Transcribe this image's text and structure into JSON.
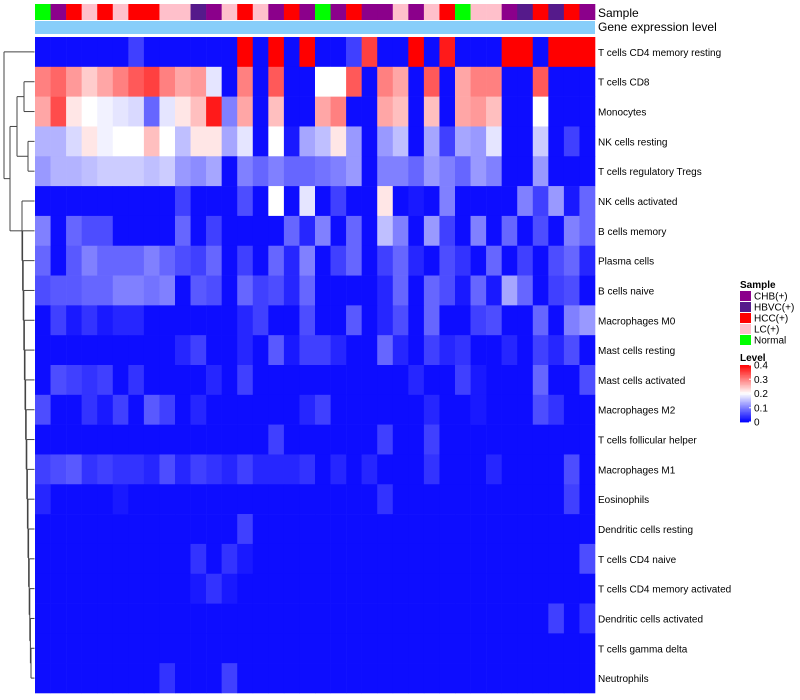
{
  "chart_data": {
    "type": "heatmap",
    "title": "",
    "colormap": {
      "low": "#0000ff",
      "mid": "#ffffff",
      "high": "#ff0000",
      "min": 0,
      "mid_value": 0.2,
      "max": 0.4
    },
    "annotation_labels": {
      "sample": "Sample",
      "level": "Gene expression level"
    },
    "level_color": "#87cefa",
    "sample_categories": [
      {
        "name": "CHB(+)",
        "color": "#8b008b"
      },
      {
        "name": "HBVC(+)",
        "color": "#551a8b"
      },
      {
        "name": "HCC(+)",
        "color": "#ff0000"
      },
      {
        "name": "LC(+)",
        "color": "#ffc0cb"
      },
      {
        "name": "Normal",
        "color": "#00ff00"
      }
    ],
    "samples": [
      "Normal",
      "CHB(+)",
      "HCC(+)",
      "LC(+)",
      "HCC(+)",
      "LC(+)",
      "HCC(+)",
      "HCC(+)",
      "LC(+)",
      "LC(+)",
      "HBVC(+)",
      "CHB(+)",
      "LC(+)",
      "HCC(+)",
      "LC(+)",
      "CHB(+)",
      "HCC(+)",
      "CHB(+)",
      "Normal",
      "CHB(+)",
      "HCC(+)",
      "CHB(+)",
      "CHB(+)",
      "LC(+)",
      "CHB(+)",
      "LC(+)",
      "HCC(+)",
      "Normal",
      "LC(+)",
      "LC(+)",
      "CHB(+)",
      "HBVC(+)",
      "HCC(+)",
      "HBVC(+)",
      "HCC(+)",
      "CHB(+)"
    ],
    "rows": [
      "T cells CD4 memory resting",
      "T cells CD8",
      "Monocytes",
      "NK cells resting",
      "T cells regulatory  Tregs",
      "NK cells activated",
      "B cells memory",
      "Plasma cells",
      "B cells naive",
      "Macrophages M0",
      "Mast cells resting",
      "Mast cells activated",
      "Macrophages M2",
      "T cells follicular helper",
      "Macrophages M1",
      "Eosinophils",
      "Dendritic cells resting",
      "T cells CD4 naive",
      "T cells CD4 memory activated",
      "Dendritic cells activated",
      "T cells gamma delta",
      "Neutrophils"
    ],
    "values": [
      [
        0.01,
        0.01,
        0.01,
        0.01,
        0.01,
        0.01,
        0.05,
        0.01,
        0.01,
        0.01,
        0.01,
        0.01,
        0.01,
        0.4,
        0.01,
        0.4,
        0.01,
        0.4,
        0.01,
        0.01,
        0.05,
        0.35,
        0.01,
        0.01,
        0.4,
        0.01,
        0.38,
        0.01,
        0.01,
        0.01,
        0.4,
        0.4,
        0.01,
        0.4,
        0.4,
        0.4
      ],
      [
        0.3,
        0.32,
        0.28,
        0.24,
        0.27,
        0.3,
        0.33,
        0.35,
        0.3,
        0.27,
        0.28,
        0.18,
        0.01,
        0.3,
        0.01,
        0.33,
        0.01,
        0.01,
        0.2,
        0.2,
        0.33,
        0.01,
        0.3,
        0.27,
        0.01,
        0.33,
        0.01,
        0.27,
        0.3,
        0.3,
        0.01,
        0.01,
        0.33,
        0.01,
        0.01,
        0.01
      ],
      [
        0.27,
        0.34,
        0.22,
        0.2,
        0.19,
        0.18,
        0.17,
        0.08,
        0.18,
        0.22,
        0.25,
        0.38,
        0.1,
        0.27,
        0.01,
        0.25,
        0.01,
        0.01,
        0.27,
        0.3,
        0.01,
        0.01,
        0.27,
        0.25,
        0.01,
        0.25,
        0.01,
        0.27,
        0.28,
        0.25,
        0.01,
        0.01,
        0.2,
        0.01,
        0.01,
        0.01
      ],
      [
        0.14,
        0.14,
        0.17,
        0.22,
        0.19,
        0.2,
        0.2,
        0.25,
        0.2,
        0.15,
        0.22,
        0.22,
        0.13,
        0.18,
        0.01,
        0.2,
        0.02,
        0.13,
        0.15,
        0.22,
        0.12,
        0.01,
        0.12,
        0.15,
        0.01,
        0.13,
        0.05,
        0.13,
        0.12,
        0.18,
        0.01,
        0.01,
        0.16,
        0.01,
        0.05,
        0.01
      ],
      [
        0.12,
        0.14,
        0.14,
        0.15,
        0.16,
        0.16,
        0.16,
        0.15,
        0.16,
        0.12,
        0.11,
        0.13,
        0.01,
        0.1,
        0.08,
        0.1,
        0.08,
        0.08,
        0.09,
        0.1,
        0.12,
        0.01,
        0.1,
        0.1,
        0.08,
        0.12,
        0.1,
        0.08,
        0.12,
        0.1,
        0.01,
        0.01,
        0.12,
        0.01,
        0.01,
        0.01
      ],
      [
        0.01,
        0.01,
        0.01,
        0.01,
        0.01,
        0.01,
        0.01,
        0.01,
        0.01,
        0.05,
        0.01,
        0.01,
        0.01,
        0.06,
        0.01,
        0.2,
        0.01,
        0.18,
        0.01,
        0.05,
        0.01,
        0.01,
        0.22,
        0.01,
        0.02,
        0.01,
        0.1,
        0.01,
        0.01,
        0.01,
        0.01,
        0.1,
        0.05,
        0.12,
        0.02,
        0.08
      ],
      [
        0.1,
        0.01,
        0.08,
        0.06,
        0.06,
        0.01,
        0.01,
        0.01,
        0.01,
        0.08,
        0.01,
        0.05,
        0.01,
        0.01,
        0.01,
        0.01,
        0.08,
        0.03,
        0.1,
        0.01,
        0.08,
        0.01,
        0.15,
        0.1,
        0.01,
        0.12,
        0.05,
        0.01,
        0.1,
        0.01,
        0.08,
        0.01,
        0.06,
        0.01,
        0.1,
        0.08
      ],
      [
        0.08,
        0.01,
        0.07,
        0.1,
        0.08,
        0.08,
        0.08,
        0.1,
        0.08,
        0.06,
        0.05,
        0.08,
        0.01,
        0.05,
        0.01,
        0.08,
        0.03,
        0.1,
        0.01,
        0.05,
        0.08,
        0.01,
        0.05,
        0.08,
        0.03,
        0.01,
        0.06,
        0.04,
        0.01,
        0.08,
        0.01,
        0.05,
        0.01,
        0.06,
        0.08,
        0.03
      ],
      [
        0.06,
        0.07,
        0.07,
        0.08,
        0.08,
        0.1,
        0.1,
        0.09,
        0.1,
        0.01,
        0.07,
        0.06,
        0.01,
        0.08,
        0.05,
        0.06,
        0.03,
        0.08,
        0.01,
        0.01,
        0.01,
        0.01,
        0.03,
        0.08,
        0.01,
        0.08,
        0.06,
        0.02,
        0.08,
        0.02,
        0.13,
        0.08,
        0.01,
        0.05,
        0.06,
        0.01
      ],
      [
        0.01,
        0.05,
        0.02,
        0.04,
        0.02,
        0.03,
        0.03,
        0.01,
        0.01,
        0.01,
        0.01,
        0.01,
        0.01,
        0.03,
        0.05,
        0.01,
        0.01,
        0.06,
        0.01,
        0.01,
        0.07,
        0.01,
        0.03,
        0.06,
        0.01,
        0.08,
        0.01,
        0.01,
        0.05,
        0.06,
        0.01,
        0.01,
        0.08,
        0.01,
        0.1,
        0.12
      ],
      [
        0.01,
        0.01,
        0.01,
        0.01,
        0.01,
        0.01,
        0.01,
        0.01,
        0.01,
        0.03,
        0.05,
        0.01,
        0.01,
        0.03,
        0.01,
        0.07,
        0.02,
        0.05,
        0.05,
        0.03,
        0.01,
        0.01,
        0.08,
        0.03,
        0.01,
        0.05,
        0.03,
        0.04,
        0.01,
        0.01,
        0.03,
        0.01,
        0.05,
        0.03,
        0.06,
        0.01
      ],
      [
        0.01,
        0.06,
        0.05,
        0.04,
        0.05,
        0.01,
        0.04,
        0.01,
        0.01,
        0.01,
        0.01,
        0.03,
        0.01,
        0.05,
        0.01,
        0.01,
        0.01,
        0.01,
        0.01,
        0.01,
        0.01,
        0.01,
        0.01,
        0.01,
        0.03,
        0.01,
        0.01,
        0.05,
        0.02,
        0.01,
        0.01,
        0.01,
        0.08,
        0.01,
        0.01,
        0.06
      ],
      [
        0.06,
        0.01,
        0.01,
        0.04,
        0.02,
        0.05,
        0.01,
        0.07,
        0.05,
        0.01,
        0.03,
        0.01,
        0.01,
        0.01,
        0.01,
        0.01,
        0.01,
        0.03,
        0.05,
        0.01,
        0.01,
        0.01,
        0.01,
        0.01,
        0.01,
        0.03,
        0.01,
        0.01,
        0.02,
        0.01,
        0.01,
        0.01,
        0.06,
        0.04,
        0.01,
        0.01
      ],
      [
        0.01,
        0.01,
        0.01,
        0.01,
        0.01,
        0.01,
        0.01,
        0.01,
        0.01,
        0.01,
        0.01,
        0.01,
        0.01,
        0.01,
        0.01,
        0.05,
        0.01,
        0.01,
        0.01,
        0.01,
        0.01,
        0.01,
        0.05,
        0.01,
        0.01,
        0.05,
        0.01,
        0.01,
        0.01,
        0.01,
        0.01,
        0.01,
        0.01,
        0.01,
        0.01,
        0.01
      ],
      [
        0.05,
        0.06,
        0.07,
        0.04,
        0.05,
        0.04,
        0.04,
        0.03,
        0.06,
        0.03,
        0.05,
        0.04,
        0.03,
        0.05,
        0.03,
        0.03,
        0.03,
        0.04,
        0.01,
        0.03,
        0.01,
        0.03,
        0.01,
        0.01,
        0.01,
        0.04,
        0.01,
        0.01,
        0.01,
        0.03,
        0.01,
        0.01,
        0.01,
        0.01,
        0.06,
        0.01
      ],
      [
        0.03,
        0.01,
        0.01,
        0.01,
        0.01,
        0.02,
        0.01,
        0.01,
        0.01,
        0.01,
        0.01,
        0.01,
        0.01,
        0.01,
        0.01,
        0.01,
        0.01,
        0.01,
        0.01,
        0.01,
        0.01,
        0.01,
        0.04,
        0.01,
        0.01,
        0.01,
        0.01,
        0.01,
        0.01,
        0.01,
        0.01,
        0.01,
        0.01,
        0.01,
        0.05,
        0.01
      ],
      [
        0.01,
        0.01,
        0.01,
        0.01,
        0.01,
        0.01,
        0.01,
        0.01,
        0.01,
        0.01,
        0.01,
        0.01,
        0.01,
        0.05,
        0.01,
        0.01,
        0.01,
        0.01,
        0.01,
        0.01,
        0.01,
        0.01,
        0.01,
        0.01,
        0.01,
        0.01,
        0.01,
        0.01,
        0.01,
        0.01,
        0.01,
        0.01,
        0.01,
        0.01,
        0.01,
        0.01
      ],
      [
        0.01,
        0.01,
        0.01,
        0.01,
        0.01,
        0.01,
        0.01,
        0.01,
        0.01,
        0.01,
        0.04,
        0.01,
        0.04,
        0.02,
        0.01,
        0.01,
        0.01,
        0.01,
        0.01,
        0.01,
        0.01,
        0.01,
        0.01,
        0.01,
        0.01,
        0.01,
        0.01,
        0.01,
        0.01,
        0.01,
        0.01,
        0.01,
        0.01,
        0.01,
        0.01,
        0.06
      ],
      [
        0.01,
        0.01,
        0.01,
        0.01,
        0.01,
        0.01,
        0.01,
        0.01,
        0.01,
        0.01,
        0.02,
        0.04,
        0.02,
        0.01,
        0.01,
        0.01,
        0.01,
        0.01,
        0.01,
        0.01,
        0.01,
        0.01,
        0.01,
        0.01,
        0.01,
        0.01,
        0.01,
        0.01,
        0.01,
        0.01,
        0.01,
        0.01,
        0.01,
        0.01,
        0.01,
        0.01
      ],
      [
        0.01,
        0.01,
        0.01,
        0.01,
        0.01,
        0.01,
        0.01,
        0.01,
        0.01,
        0.01,
        0.01,
        0.01,
        0.01,
        0.01,
        0.01,
        0.01,
        0.01,
        0.01,
        0.01,
        0.01,
        0.01,
        0.01,
        0.01,
        0.01,
        0.01,
        0.01,
        0.01,
        0.01,
        0.01,
        0.01,
        0.01,
        0.01,
        0.01,
        0.05,
        0.01,
        0.04
      ],
      [
        0.01,
        0.01,
        0.01,
        0.01,
        0.01,
        0.01,
        0.01,
        0.01,
        0.01,
        0.01,
        0.01,
        0.01,
        0.01,
        0.01,
        0.01,
        0.01,
        0.01,
        0.01,
        0.01,
        0.01,
        0.01,
        0.01,
        0.01,
        0.01,
        0.01,
        0.01,
        0.01,
        0.01,
        0.01,
        0.01,
        0.01,
        0.01,
        0.01,
        0.01,
        0.01,
        0.01
      ],
      [
        0.01,
        0.01,
        0.01,
        0.01,
        0.01,
        0.01,
        0.01,
        0.01,
        0.04,
        0.01,
        0.01,
        0.01,
        0.05,
        0.01,
        0.01,
        0.01,
        0.01,
        0.01,
        0.01,
        0.01,
        0.01,
        0.01,
        0.01,
        0.01,
        0.01,
        0.01,
        0.01,
        0.01,
        0.01,
        0.01,
        0.01,
        0.01,
        0.01,
        0.01,
        0.01,
        0.01
      ]
    ],
    "legend": {
      "sample_title": "Sample",
      "level_title": "Level",
      "level_ticks": [
        "0.4",
        "0.3",
        "0.2",
        "0.1",
        "0"
      ],
      "level_tick_values": [
        0.4,
        0.3,
        0.2,
        0.1,
        0
      ]
    }
  }
}
